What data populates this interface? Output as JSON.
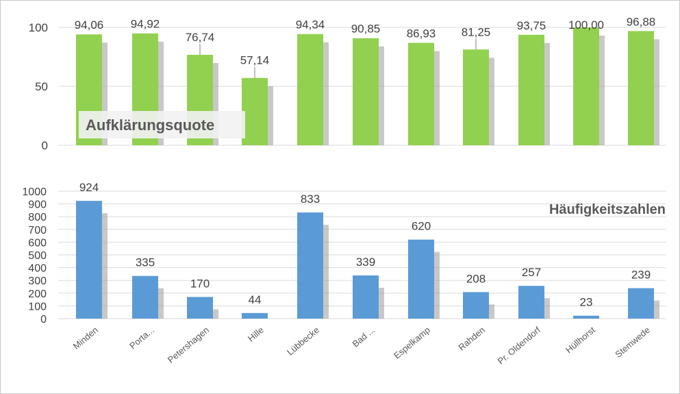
{
  "chart_data": [
    {
      "type": "bar",
      "title": "Aufklärungsquote",
      "categories": [
        "Minden",
        "Porta...",
        "Petershagen",
        "Hille",
        "Lübbecke",
        "Bad ...",
        "Espelkamp",
        "Rahden",
        "Pr. Oldendorf",
        "Hüllhorst",
        "Stemwede"
      ],
      "values": [
        94.06,
        94.92,
        76.74,
        57.14,
        94.34,
        90.85,
        86.93,
        81.25,
        93.75,
        100.0,
        96.88
      ],
      "value_labels": [
        "94,06",
        "94,92",
        "76,74",
        "57,14",
        "94,34",
        "90,85",
        "86,93",
        "81,25",
        "93,75",
        "100,00",
        "96,88"
      ],
      "y_ticks": [
        "0",
        "50",
        "100"
      ],
      "ylim": [
        0,
        100
      ],
      "color": "#92d050",
      "grid": true
    },
    {
      "type": "bar",
      "title": "Häufigkeitszahlen",
      "categories": [
        "Minden",
        "Porta...",
        "Petershagen",
        "Hille",
        "Lübbecke",
        "Bad ...",
        "Espelkamp",
        "Rahden",
        "Pr. Oldendorf",
        "Hüllhorst",
        "Stemwede"
      ],
      "values": [
        924,
        335,
        170,
        44,
        833,
        339,
        620,
        208,
        257,
        23,
        239
      ],
      "value_labels": [
        "924",
        "335",
        "170",
        "44",
        "833",
        "339",
        "620",
        "208",
        "257",
        "23",
        "239"
      ],
      "y_ticks": [
        "0",
        "100",
        "200",
        "300",
        "400",
        "500",
        "600",
        "700",
        "800",
        "900",
        "1000"
      ],
      "ylim": [
        0,
        1000
      ],
      "color": "#5b9bd5",
      "grid": true
    }
  ]
}
